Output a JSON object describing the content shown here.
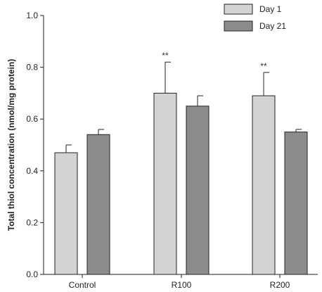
{
  "chart_data": {
    "type": "bar",
    "title": "",
    "xlabel": "",
    "ylabel": "Total thiol concentration (nmol/mg protein)",
    "ylim": [
      0,
      1.0
    ],
    "y_ticks": [
      "0.0",
      "0.2",
      "0.4",
      "0.6",
      "0.8",
      "1.0"
    ],
    "categories": [
      "Control",
      "R100",
      "R200"
    ],
    "series": [
      {
        "name": "Day 1",
        "color": "#d3d3d3",
        "values": [
          0.47,
          0.7,
          0.69
        ],
        "errors": [
          0.03,
          0.12,
          0.09
        ],
        "annotations": [
          "",
          "**",
          "**"
        ]
      },
      {
        "name": "Day 21",
        "color": "#8c8c8c",
        "values": [
          0.54,
          0.65,
          0.55
        ],
        "errors": [
          0.02,
          0.04,
          0.01
        ],
        "annotations": [
          "",
          "",
          ""
        ]
      }
    ],
    "legend": "top-right",
    "grid": false
  }
}
